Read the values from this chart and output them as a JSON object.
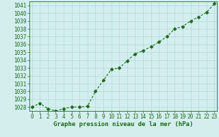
{
  "x": [
    0,
    1,
    2,
    3,
    4,
    5,
    6,
    7,
    8,
    9,
    10,
    11,
    12,
    13,
    14,
    15,
    16,
    17,
    18,
    19,
    20,
    21,
    22,
    23
  ],
  "y": [
    1028.0,
    1028.5,
    1027.8,
    1027.5,
    1027.8,
    1028.0,
    1028.0,
    1028.1,
    1030.0,
    1031.4,
    1032.8,
    1033.0,
    1033.9,
    1034.8,
    1035.2,
    1035.7,
    1036.3,
    1037.0,
    1038.0,
    1038.3,
    1039.0,
    1039.5,
    1040.1,
    1041.2
  ],
  "ylim": [
    1027.5,
    1041.5
  ],
  "yticks": [
    1028,
    1029,
    1030,
    1031,
    1032,
    1033,
    1034,
    1035,
    1036,
    1037,
    1038,
    1039,
    1040,
    1041
  ],
  "xlim": [
    -0.3,
    23.3
  ],
  "xticks": [
    0,
    1,
    2,
    3,
    4,
    5,
    6,
    7,
    8,
    9,
    10,
    11,
    12,
    13,
    14,
    15,
    16,
    17,
    18,
    19,
    20,
    21,
    22,
    23
  ],
  "line_color": "#1a6b1a",
  "marker_color": "#1a6b1a",
  "bg_color": "#d4eeee",
  "grid_color": "#b0d8d8",
  "xlabel": "Graphe pression niveau de la mer (hPa)",
  "xlabel_color": "#1a6b1a",
  "tick_color": "#1a6b1a",
  "axis_label_fontsize": 6.5,
  "tick_fontsize": 5.5,
  "marker_size": 2.5,
  "line_width": 0.8
}
